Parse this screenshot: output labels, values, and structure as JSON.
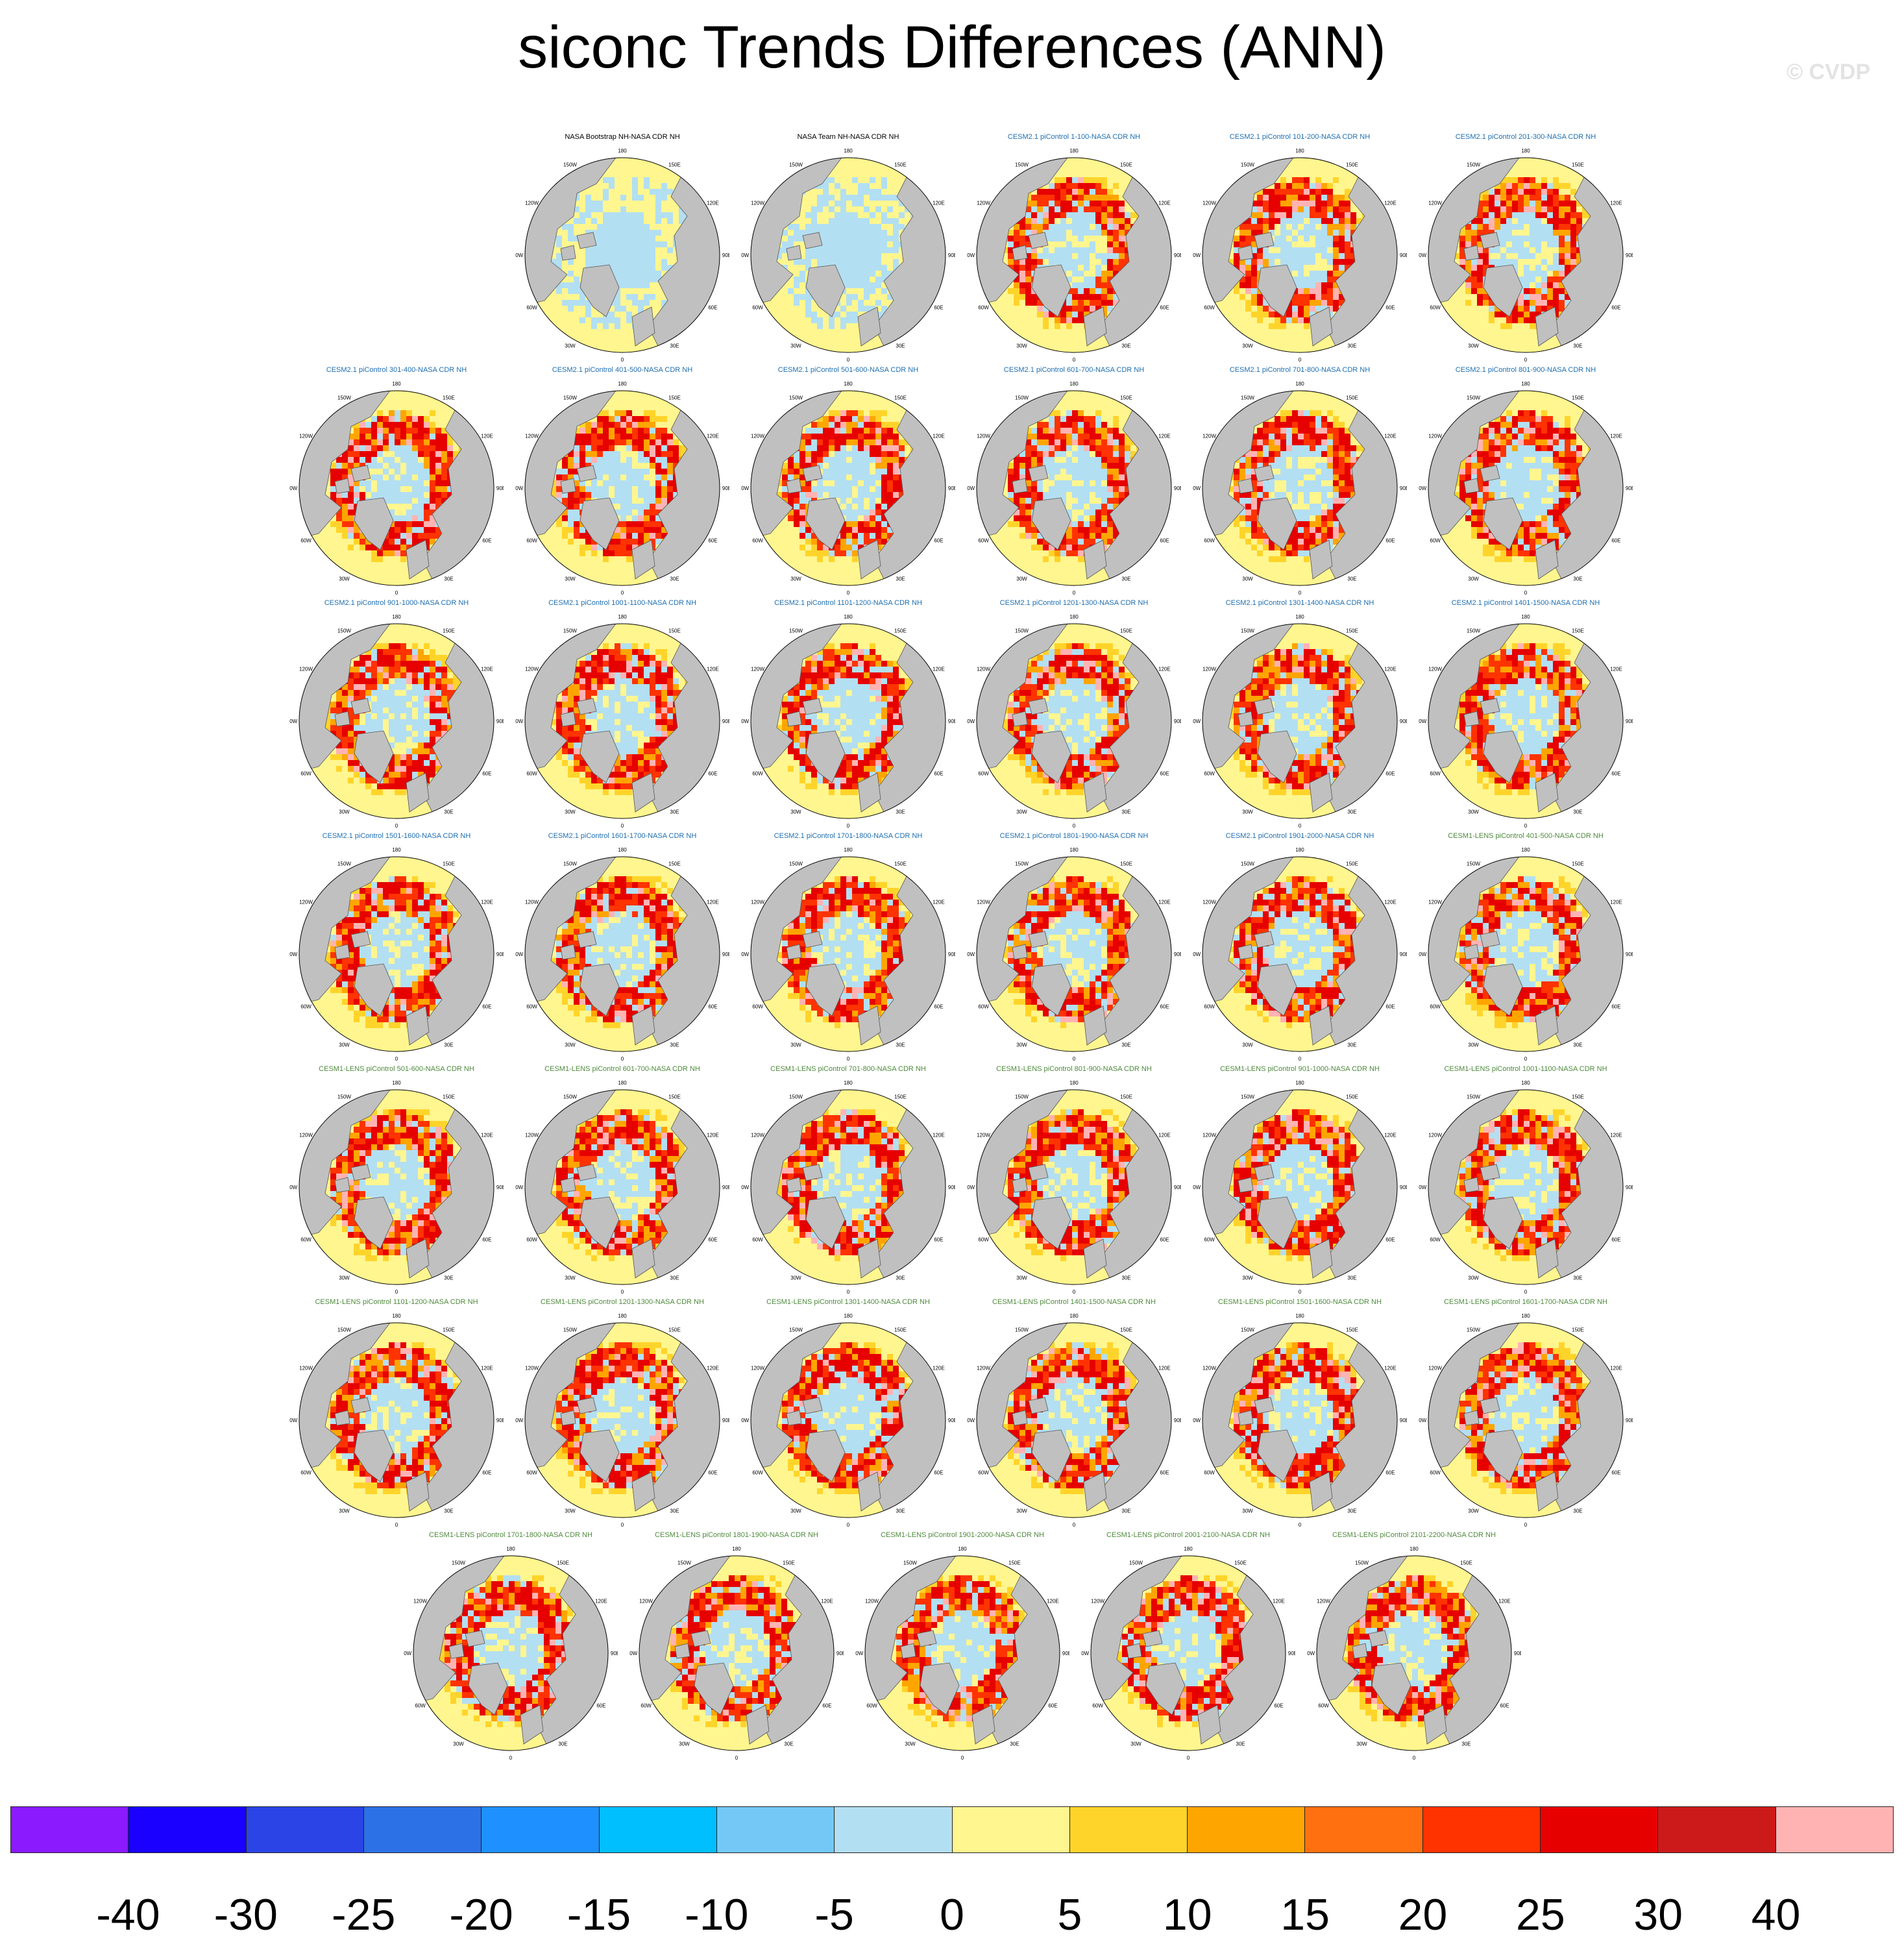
{
  "title": "siconc Trends Differences (ANN)",
  "watermark": "© CVDP",
  "projection": "north-polar-stereographic",
  "longitude_labels": [
    "180",
    "150E",
    "120E",
    "90E",
    "60E",
    "30E",
    "0",
    "30W",
    "60W",
    "90W",
    "120W",
    "150W"
  ],
  "panels": [
    {
      "title": "NASA Bootstrap NH-NASA CDR NH",
      "group": "obs"
    },
    {
      "title": "NASA Team NH-NASA CDR NH",
      "group": "obs"
    },
    {
      "title": "CESM2.1 piControl 1-100-NASA CDR NH",
      "group": "cesm2"
    },
    {
      "title": "CESM2.1 piControl 101-200-NASA CDR NH",
      "group": "cesm2"
    },
    {
      "title": "CESM2.1 piControl 201-300-NASA CDR NH",
      "group": "cesm2"
    },
    {
      "title": "CESM2.1 piControl 301-400-NASA CDR NH",
      "group": "cesm2"
    },
    {
      "title": "CESM2.1 piControl 401-500-NASA CDR NH",
      "group": "cesm2"
    },
    {
      "title": "CESM2.1 piControl 501-600-NASA CDR NH",
      "group": "cesm2"
    },
    {
      "title": "CESM2.1 piControl 601-700-NASA CDR NH",
      "group": "cesm2"
    },
    {
      "title": "CESM2.1 piControl 701-800-NASA CDR NH",
      "group": "cesm2"
    },
    {
      "title": "CESM2.1 piControl 801-900-NASA CDR NH",
      "group": "cesm2"
    },
    {
      "title": "CESM2.1 piControl 901-1000-NASA CDR NH",
      "group": "cesm2"
    },
    {
      "title": "CESM2.1 piControl 1001-1100-NASA CDR NH",
      "group": "cesm2"
    },
    {
      "title": "CESM2.1 piControl 1101-1200-NASA CDR NH",
      "group": "cesm2"
    },
    {
      "title": "CESM2.1 piControl 1201-1300-NASA CDR NH",
      "group": "cesm2"
    },
    {
      "title": "CESM2.1 piControl 1301-1400-NASA CDR NH",
      "group": "cesm2"
    },
    {
      "title": "CESM2.1 piControl 1401-1500-NASA CDR NH",
      "group": "cesm2"
    },
    {
      "title": "CESM2.1 piControl 1501-1600-NASA CDR NH",
      "group": "cesm2"
    },
    {
      "title": "CESM2.1 piControl 1601-1700-NASA CDR NH",
      "group": "cesm2"
    },
    {
      "title": "CESM2.1 piControl 1701-1800-NASA CDR NH",
      "group": "cesm2"
    },
    {
      "title": "CESM2.1 piControl 1801-1900-NASA CDR NH",
      "group": "cesm2"
    },
    {
      "title": "CESM2.1 piControl 1901-2000-NASA CDR NH",
      "group": "cesm2"
    },
    {
      "title": "CESM1-LENS piControl 401-500-NASA CDR NH",
      "group": "cesm1"
    },
    {
      "title": "CESM1-LENS piControl 501-600-NASA CDR NH",
      "group": "cesm1"
    },
    {
      "title": "CESM1-LENS piControl 601-700-NASA CDR NH",
      "group": "cesm1"
    },
    {
      "title": "CESM1-LENS piControl 701-800-NASA CDR NH",
      "group": "cesm1"
    },
    {
      "title": "CESM1-LENS piControl 801-900-NASA CDR NH",
      "group": "cesm1"
    },
    {
      "title": "CESM1-LENS piControl 901-1000-NASA CDR NH",
      "group": "cesm1"
    },
    {
      "title": "CESM1-LENS piControl 1001-1100-NASA CDR NH",
      "group": "cesm1"
    },
    {
      "title": "CESM1-LENS piControl 1101-1200-NASA CDR NH",
      "group": "cesm1"
    },
    {
      "title": "CESM1-LENS piControl 1201-1300-NASA CDR NH",
      "group": "cesm1"
    },
    {
      "title": "CESM1-LENS piControl 1301-1400-NASA CDR NH",
      "group": "cesm1"
    },
    {
      "title": "CESM1-LENS piControl 1401-1500-NASA CDR NH",
      "group": "cesm1"
    },
    {
      "title": "CESM1-LENS piControl 1501-1600-NASA CDR NH",
      "group": "cesm1"
    },
    {
      "title": "CESM1-LENS piControl 1601-1700-NASA CDR NH",
      "group": "cesm1"
    },
    {
      "title": "CESM1-LENS piControl 1701-1800-NASA CDR NH",
      "group": "cesm1"
    },
    {
      "title": "CESM1-LENS piControl 1801-1900-NASA CDR NH",
      "group": "cesm1"
    },
    {
      "title": "CESM1-LENS piControl 1901-2000-NASA CDR NH",
      "group": "cesm1"
    },
    {
      "title": "CESM1-LENS piControl 2001-2100-NASA CDR NH",
      "group": "cesm1"
    },
    {
      "title": "CESM1-LENS piControl 2101-2200-NASA CDR NH",
      "group": "cesm1"
    }
  ],
  "group_colors": {
    "obs": "#000000",
    "cesm2": "#1f6fb0",
    "cesm1": "#4e8a3c"
  },
  "map_colors": {
    "land": "#c0c0c0",
    "ocean_neutral": "#fff68f",
    "ice_positive": "#b3dff2",
    "coast": "#555555"
  },
  "colorbar": {
    "colors": [
      "#8b1aff",
      "#1900ff",
      "#2b44e6",
      "#2c72e6",
      "#1e90ff",
      "#00bfff",
      "#74c8f5",
      "#b3dff2",
      "#fff68f",
      "#ffd42a",
      "#ffa500",
      "#ff7011",
      "#ff3300",
      "#e60000",
      "#cc1a1a",
      "#ffb3b3"
    ],
    "labels": [
      "-40",
      "-30",
      "-25",
      "-20",
      "-15",
      "-10",
      "-5",
      "0",
      "5",
      "10",
      "15",
      "20",
      "25",
      "30",
      "40"
    ]
  }
}
